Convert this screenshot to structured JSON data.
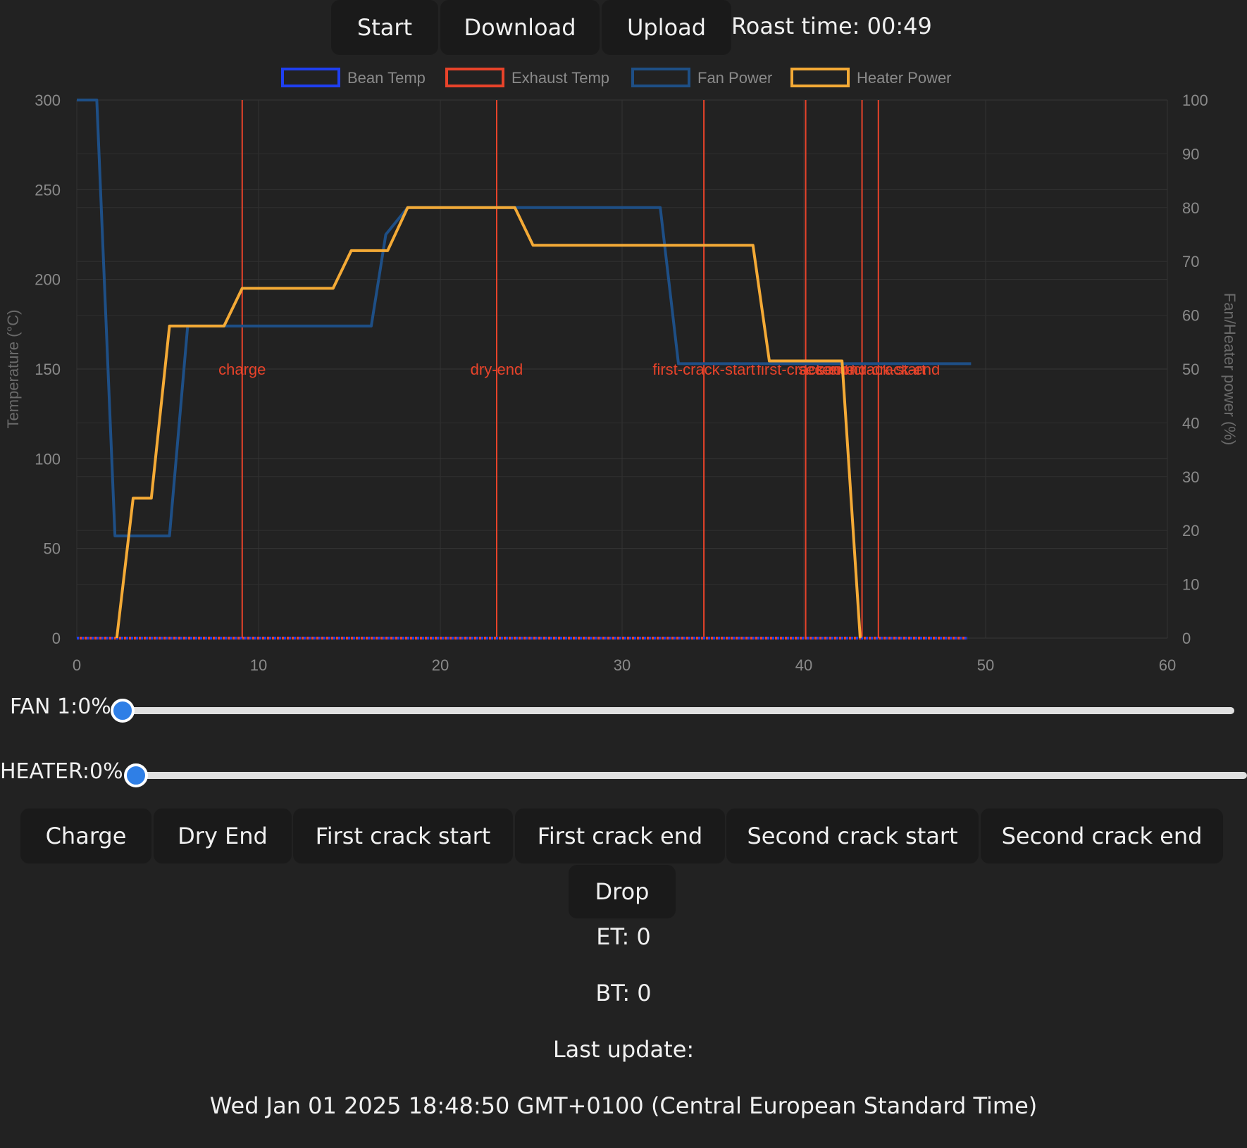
{
  "toolbar": {
    "start_label": "Start",
    "download_label": "Download",
    "upload_label": "Upload",
    "roast_time": "Roast time: 00:49"
  },
  "colors": {
    "bean": "#1f3ff0",
    "exhaust": "#e8432a",
    "fan": "#1e4f86",
    "heater": "#f4aa36",
    "event": "#e8432a"
  },
  "chart_data": {
    "type": "line",
    "xlim": [
      0,
      60
    ],
    "x_ticks": [
      "0",
      "10",
      "20",
      "30",
      "40",
      "50",
      "60"
    ],
    "ylim_left": [
      0,
      300
    ],
    "y_ticks_left": [
      "0",
      "50",
      "100",
      "150",
      "200",
      "250",
      "300"
    ],
    "ylim_right": [
      0,
      100
    ],
    "y_ticks_right": [
      "0",
      "10",
      "20",
      "30",
      "40",
      "50",
      "60",
      "70",
      "80",
      "90",
      "100"
    ],
    "ylabel_left": "Temperature (°C)",
    "ylabel_right": "Fan/Heater power (%)",
    "legend": [
      "Bean Temp",
      "Exhaust Temp",
      "Fan Power",
      "Heater Power"
    ],
    "legend_position": "top",
    "series": [
      {
        "name": "Bean Temp",
        "axis": "left",
        "style": "dotted",
        "points": [
          [
            0,
            0
          ],
          [
            49,
            0
          ]
        ]
      },
      {
        "name": "Exhaust Temp",
        "axis": "left",
        "style": "dotted",
        "points": [
          [
            0,
            0
          ],
          [
            49,
            0
          ]
        ]
      },
      {
        "name": "Fan Power",
        "axis": "right",
        "points": [
          [
            0,
            100
          ],
          [
            1.1,
            100
          ],
          [
            2.1,
            19
          ],
          [
            5.1,
            19
          ],
          [
            6.1,
            58
          ],
          [
            16.2,
            58
          ],
          [
            17,
            75
          ],
          [
            18.2,
            80
          ],
          [
            32.1,
            80
          ],
          [
            33.1,
            51
          ],
          [
            49.2,
            51
          ]
        ]
      },
      {
        "name": "Heater Power",
        "axis": "right",
        "points": [
          [
            2.2,
            0
          ],
          [
            3.1,
            26
          ],
          [
            4.1,
            26
          ],
          [
            5.1,
            58
          ],
          [
            8.1,
            58
          ],
          [
            9.1,
            65
          ],
          [
            14.1,
            65
          ],
          [
            15.1,
            72
          ],
          [
            17.1,
            72
          ],
          [
            18.2,
            80
          ],
          [
            24.1,
            80
          ],
          [
            25.1,
            73
          ],
          [
            37.2,
            73
          ],
          [
            38.1,
            51.5
          ],
          [
            42.1,
            51.5
          ],
          [
            43.1,
            0
          ]
        ]
      }
    ],
    "events": [
      {
        "x": 9.1,
        "label": "charge"
      },
      {
        "x": 23.1,
        "label": "dry-end"
      },
      {
        "x": 34.5,
        "label": "first-crack-start"
      },
      {
        "x": 40.1,
        "label": "first-crack-end"
      },
      {
        "x": 43.2,
        "label": "second-crack-start"
      },
      {
        "x": 44.1,
        "label": "second-crack-end"
      }
    ]
  },
  "sliders": {
    "fan_label": "FAN 1:0%",
    "fan_value": 0,
    "heater_label": "HEATER:0%",
    "heater_value": 0
  },
  "events_buttons": {
    "charge": "Charge",
    "dry_end": "Dry End",
    "first_crack_start": "First crack start",
    "first_crack_end": "First crack end",
    "second_crack_start": "Second crack start",
    "second_crack_end": "Second crack end",
    "drop": "Drop"
  },
  "status": {
    "et": "ET: 0",
    "bt": "BT: 0",
    "last_update_label": "Last update:",
    "last_update_value": "Wed Jan 01 2025 18:48:50 GMT+0100 (Central European Standard Time)"
  }
}
